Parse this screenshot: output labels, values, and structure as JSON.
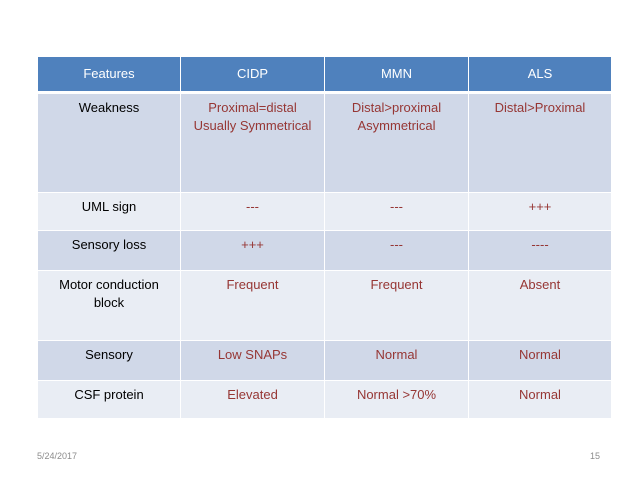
{
  "table": {
    "headers": [
      "Features",
      "CIDP",
      "MMN",
      "ALS"
    ],
    "rows": [
      {
        "feature": "Weakness",
        "cidp": "Proximal=distal Usually Symmetrical",
        "mmn": "Distal>proximal Asymmetrical",
        "als": "Distal>Proximal"
      },
      {
        "feature": "UML sign",
        "cidp": "---",
        "mmn": "---",
        "als": "+++"
      },
      {
        "feature": "Sensory loss",
        "cidp": "+++",
        "mmn": "---",
        "als": "----"
      },
      {
        "feature": "Motor conduction block",
        "cidp": "Frequent",
        "mmn": "Frequent",
        "als": "Absent"
      },
      {
        "feature": "Sensory",
        "cidp": "Low SNAPs",
        "mmn": "Normal",
        "als": "Normal"
      },
      {
        "feature": "CSF protein",
        "cidp": "Elevated",
        "mmn": "Normal >70%",
        "als": "Normal"
      }
    ]
  },
  "footer": {
    "date": "5/24/2017",
    "page": "15"
  },
  "colors": {
    "header_bg": "#4f81bd",
    "row_dark": "#d0d8e8",
    "row_light": "#e9edf4",
    "value_text": "#963634"
  }
}
